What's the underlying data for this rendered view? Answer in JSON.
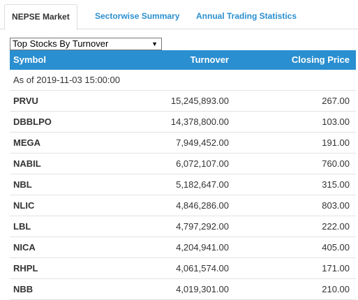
{
  "tabs": [
    {
      "label": "NEPSE Market",
      "active": true
    },
    {
      "label": "Sectorwise Summary",
      "active": false
    },
    {
      "label": "Annual Trading Statistics",
      "active": false
    }
  ],
  "dropdown": {
    "selected": "Top Stocks By Turnover"
  },
  "table": {
    "headers": {
      "symbol": "Symbol",
      "turnover": "Turnover",
      "closing": "Closing Price"
    },
    "as_of": "As of 2019-11-03 15:00:00",
    "rows": [
      {
        "symbol": "PRVU",
        "turnover": "15,245,893.00",
        "closing": "267.00"
      },
      {
        "symbol": "DBBLPO",
        "turnover": "14,378,800.00",
        "closing": "103.00"
      },
      {
        "symbol": "MEGA",
        "turnover": "7,949,452.00",
        "closing": "191.00"
      },
      {
        "symbol": "NABIL",
        "turnover": "6,072,107.00",
        "closing": "760.00"
      },
      {
        "symbol": "NBL",
        "turnover": "5,182,647.00",
        "closing": "315.00"
      },
      {
        "symbol": "NLIC",
        "turnover": "4,846,286.00",
        "closing": "803.00"
      },
      {
        "symbol": "LBL",
        "turnover": "4,797,292.00",
        "closing": "222.00"
      },
      {
        "symbol": "NICA",
        "turnover": "4,204,941.00",
        "closing": "405.00"
      },
      {
        "symbol": "RHPL",
        "turnover": "4,061,574.00",
        "closing": "171.00"
      },
      {
        "symbol": "NBB",
        "turnover": "4,019,301.00",
        "closing": "210.00"
      }
    ]
  },
  "colors": {
    "accent": "#2a8fd0",
    "header_text": "#ffffff",
    "border": "#dddddd"
  },
  "icons": {
    "dropdown_caret": "chevron-down-icon"
  }
}
